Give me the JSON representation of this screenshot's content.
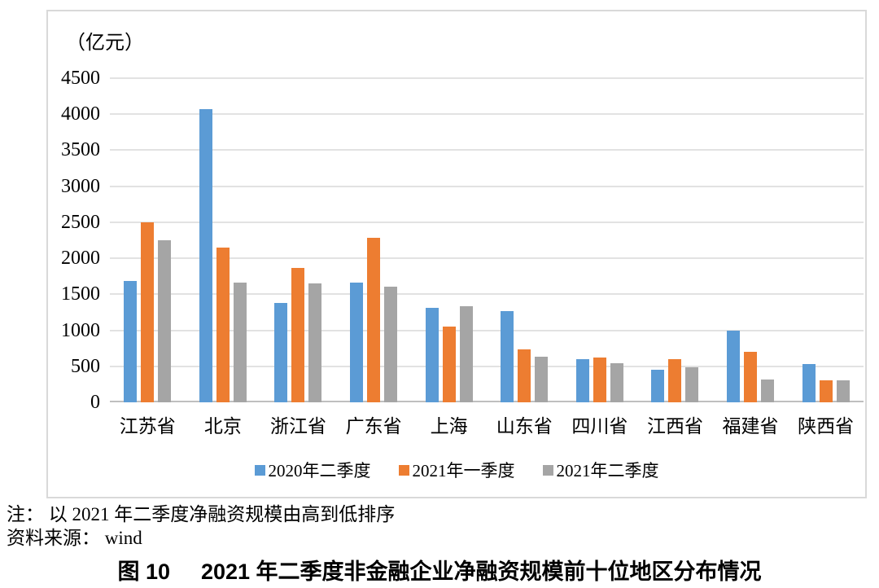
{
  "unit_label": "（亿元）",
  "chart_data": {
    "type": "bar",
    "title": "",
    "xlabel": "",
    "ylabel": "亿元",
    "categories": [
      "江苏省",
      "北京",
      "浙江省",
      "广东省",
      "上海",
      "山东省",
      "四川省",
      "江西省",
      "福建省",
      "陕西省"
    ],
    "series": [
      {
        "name": "2020年二季度",
        "color": "#5B9BD5",
        "values": [
          1680,
          4070,
          1380,
          1660,
          1310,
          1270,
          600,
          450,
          990,
          530
        ]
      },
      {
        "name": "2021年一季度",
        "color": "#ED7D31",
        "values": [
          2500,
          2150,
          1870,
          2280,
          1050,
          730,
          620,
          600,
          700,
          300
        ]
      },
      {
        "name": "2021年二季度",
        "color": "#A5A5A5",
        "values": [
          2250,
          1660,
          1650,
          1610,
          1330,
          630,
          540,
          490,
          320,
          310
        ]
      }
    ],
    "ylim": [
      0,
      4500
    ],
    "ytick_step": 500,
    "yticks": [
      0,
      500,
      1000,
      1500,
      2000,
      2500,
      3000,
      3500,
      4000,
      4500
    ],
    "grid": true,
    "legend_position": "bottom",
    "gridline_color": "#E2E2E2",
    "axis_color": "#BFBFBF"
  },
  "note": "注： 以 2021 年二季度净融资规模由高到低排序",
  "source": "资料来源： wind",
  "figure_title": {
    "prefix": "图 10",
    "text": "2021 年二季度非金融企业净融资规模前十位地区分布情况"
  }
}
